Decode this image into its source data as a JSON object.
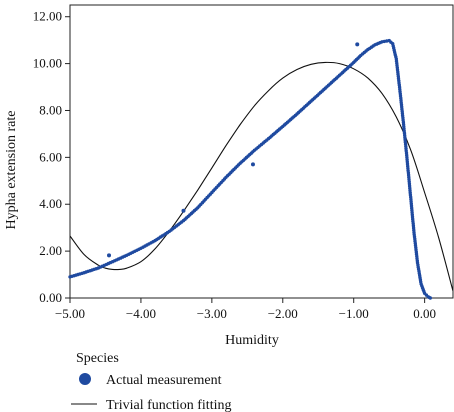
{
  "chart_data": {
    "type": "scatter",
    "title": "",
    "xlabel": "Humidity",
    "ylabel": "Hypha extension rate",
    "xlim": [
      -5.0,
      0.4
    ],
    "ylim": [
      0.0,
      12.5
    ],
    "x_ticks": [
      -5.0,
      -4.0,
      -3.0,
      -2.0,
      -1.0,
      0.0
    ],
    "x_tick_labels": [
      "−5.00",
      "−4.00",
      "−3.00",
      "−2.00",
      "−1.00",
      "0.00"
    ],
    "y_ticks": [
      0,
      2,
      4,
      6,
      8,
      10,
      12
    ],
    "y_tick_labels": [
      "0.00",
      "2.00",
      "4.00",
      "6.00",
      "8.00",
      "10.00",
      "12.00"
    ],
    "grid": false,
    "legend": {
      "title": "Species",
      "placement": "bottom-left",
      "entries": [
        "Actual measurement",
        "Trivial function fitting"
      ]
    },
    "colors": {
      "measurement": "#1f4aa0",
      "fit": "#111111"
    },
    "series": [
      {
        "name": "Actual measurement",
        "kind": "points",
        "points": [
          [
            -5.0,
            0.9
          ],
          [
            -4.8,
            1.08
          ],
          [
            -4.6,
            1.28
          ],
          [
            -4.4,
            1.55
          ],
          [
            -4.2,
            1.82
          ],
          [
            -4.0,
            2.12
          ],
          [
            -3.8,
            2.45
          ],
          [
            -3.6,
            2.84
          ],
          [
            -3.4,
            3.3
          ],
          [
            -3.2,
            3.85
          ],
          [
            -3.0,
            4.5
          ],
          [
            -2.8,
            5.15
          ],
          [
            -2.6,
            5.75
          ],
          [
            -2.4,
            6.3
          ],
          [
            -2.2,
            6.8
          ],
          [
            -2.0,
            7.32
          ],
          [
            -1.8,
            7.85
          ],
          [
            -1.6,
            8.4
          ],
          [
            -1.4,
            8.95
          ],
          [
            -1.2,
            9.5
          ],
          [
            -1.0,
            10.05
          ],
          [
            -0.9,
            10.35
          ],
          [
            -0.8,
            10.6
          ],
          [
            -0.7,
            10.8
          ],
          [
            -0.6,
            10.93
          ],
          [
            -0.5,
            10.98
          ],
          [
            -0.45,
            10.85
          ],
          [
            -0.4,
            10.2
          ],
          [
            -0.35,
            8.9
          ],
          [
            -0.3,
            7.5
          ],
          [
            -0.25,
            6.0
          ],
          [
            -0.2,
            4.4
          ],
          [
            -0.15,
            2.8
          ],
          [
            -0.1,
            1.5
          ],
          [
            -0.05,
            0.6
          ],
          [
            0.0,
            0.2
          ],
          [
            0.05,
            0.05
          ],
          [
            0.08,
            0.0
          ]
        ],
        "outliers": [
          [
            -4.45,
            1.82
          ],
          [
            -3.4,
            3.72
          ],
          [
            -2.42,
            5.7
          ],
          [
            -0.95,
            10.82
          ]
        ]
      },
      {
        "name": "Trivial function fitting",
        "kind": "line",
        "points": [
          [
            -5.0,
            2.65
          ],
          [
            -4.8,
            1.85
          ],
          [
            -4.6,
            1.4
          ],
          [
            -4.5,
            1.27
          ],
          [
            -4.4,
            1.22
          ],
          [
            -4.3,
            1.22
          ],
          [
            -4.2,
            1.27
          ],
          [
            -4.0,
            1.55
          ],
          [
            -3.8,
            2.1
          ],
          [
            -3.6,
            2.85
          ],
          [
            -3.4,
            3.7
          ],
          [
            -3.2,
            4.6
          ],
          [
            -3.0,
            5.55
          ],
          [
            -2.8,
            6.5
          ],
          [
            -2.6,
            7.4
          ],
          [
            -2.4,
            8.2
          ],
          [
            -2.2,
            8.85
          ],
          [
            -2.0,
            9.38
          ],
          [
            -1.8,
            9.75
          ],
          [
            -1.6,
            9.97
          ],
          [
            -1.4,
            10.05
          ],
          [
            -1.2,
            10.0
          ],
          [
            -1.0,
            9.78
          ],
          [
            -0.8,
            9.38
          ],
          [
            -0.6,
            8.72
          ],
          [
            -0.4,
            7.72
          ],
          [
            -0.2,
            6.35
          ],
          [
            0.0,
            4.5
          ],
          [
            0.2,
            2.55
          ],
          [
            0.4,
            0.3
          ]
        ]
      }
    ]
  }
}
